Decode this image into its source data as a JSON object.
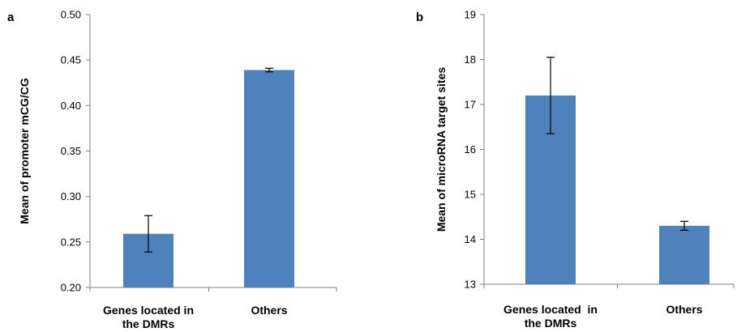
{
  "chart_data": [
    {
      "type": "bar",
      "panel_label": "a",
      "categories": [
        [
          "Genes located in",
          "the DMRs"
        ],
        [
          "Others"
        ]
      ],
      "values": [
        0.259,
        0.439
      ],
      "error": [
        0.02,
        0.002
      ],
      "ylabel": "Mean of promoter mCG/CG",
      "xlabel": "",
      "ylim": [
        0.2,
        0.5
      ],
      "yticks": [
        "0.20",
        "0.25",
        "0.30",
        "0.35",
        "0.40",
        "0.45",
        "0.50"
      ],
      "grid": false,
      "bar_color": "#4f81bd"
    },
    {
      "type": "bar",
      "panel_label": "b",
      "categories": [
        [
          "Genes located  in",
          "the DMRs"
        ],
        [
          "Others"
        ]
      ],
      "values": [
        17.2,
        14.3
      ],
      "error": [
        0.85,
        0.1
      ],
      "ylabel": "Mean of microRNA target sites",
      "xlabel": "",
      "ylim": [
        13,
        19
      ],
      "yticks": [
        "13",
        "14",
        "15",
        "16",
        "17",
        "18",
        "19"
      ],
      "grid": false,
      "bar_color": "#4f81bd"
    }
  ]
}
